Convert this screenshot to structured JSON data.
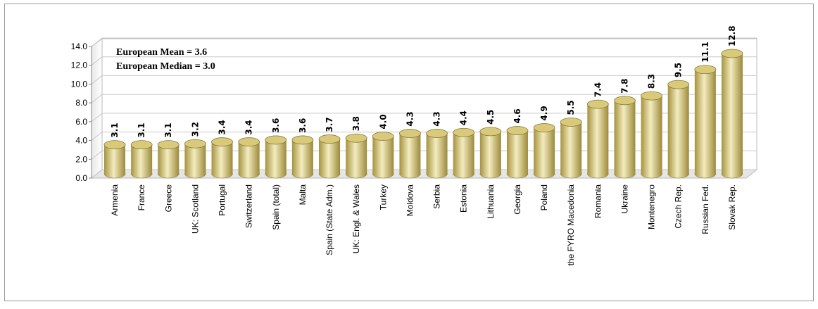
{
  "chart_data": {
    "type": "bar",
    "categories": [
      "Armenia",
      "France",
      "Greece",
      "UK: Scotland",
      "Portugal",
      "Switzerland",
      "Spain (total)",
      "Malta",
      "Spain (State Adm.)",
      "UK: Engl. & Wales",
      "Turkey",
      "Moldova",
      "Serbia",
      "Estonia",
      "Lithuania",
      "Georgia",
      "Poland",
      "the FYRO Macedonia",
      "Romania",
      "Ukraine",
      "Montenegro",
      "Czech Rep.",
      "Russian Fed.",
      "Slovak Rep."
    ],
    "values": [
      3.1,
      3.1,
      3.1,
      3.2,
      3.4,
      3.4,
      3.6,
      3.6,
      3.7,
      3.8,
      4.0,
      4.3,
      4.3,
      4.4,
      4.5,
      4.6,
      4.9,
      5.5,
      7.4,
      7.8,
      8.3,
      9.5,
      11.1,
      12.8
    ],
    "value_labels": [
      "3.1",
      "3.1",
      "3.1",
      "3.2",
      "3.4",
      "3.4",
      "3.6",
      "3.6",
      "3.7",
      "3.8",
      "4.0",
      "4.3",
      "4.3",
      "4.4",
      "4.5",
      "4.6",
      "4.9",
      "5.5",
      "7.4",
      "7.8",
      "8.3",
      "9.5",
      "11.1",
      "12.8"
    ],
    "annotations": [
      "European Mean = 3.6",
      "European Median = 3.0"
    ],
    "color": "#d9c97a",
    "ylim": [
      0,
      14
    ],
    "yticks": [
      {
        "value": 0,
        "label": "0.0"
      },
      {
        "value": 2,
        "label": "2.0"
      },
      {
        "value": 4,
        "label": "4.0"
      },
      {
        "value": 6,
        "label": "6.0"
      },
      {
        "value": 8,
        "label": "8.0"
      },
      {
        "value": 10,
        "label": "10.0"
      },
      {
        "value": 12,
        "label": "12.0"
      },
      {
        "value": 14,
        "label": "14.0"
      }
    ],
    "grid": true
  }
}
